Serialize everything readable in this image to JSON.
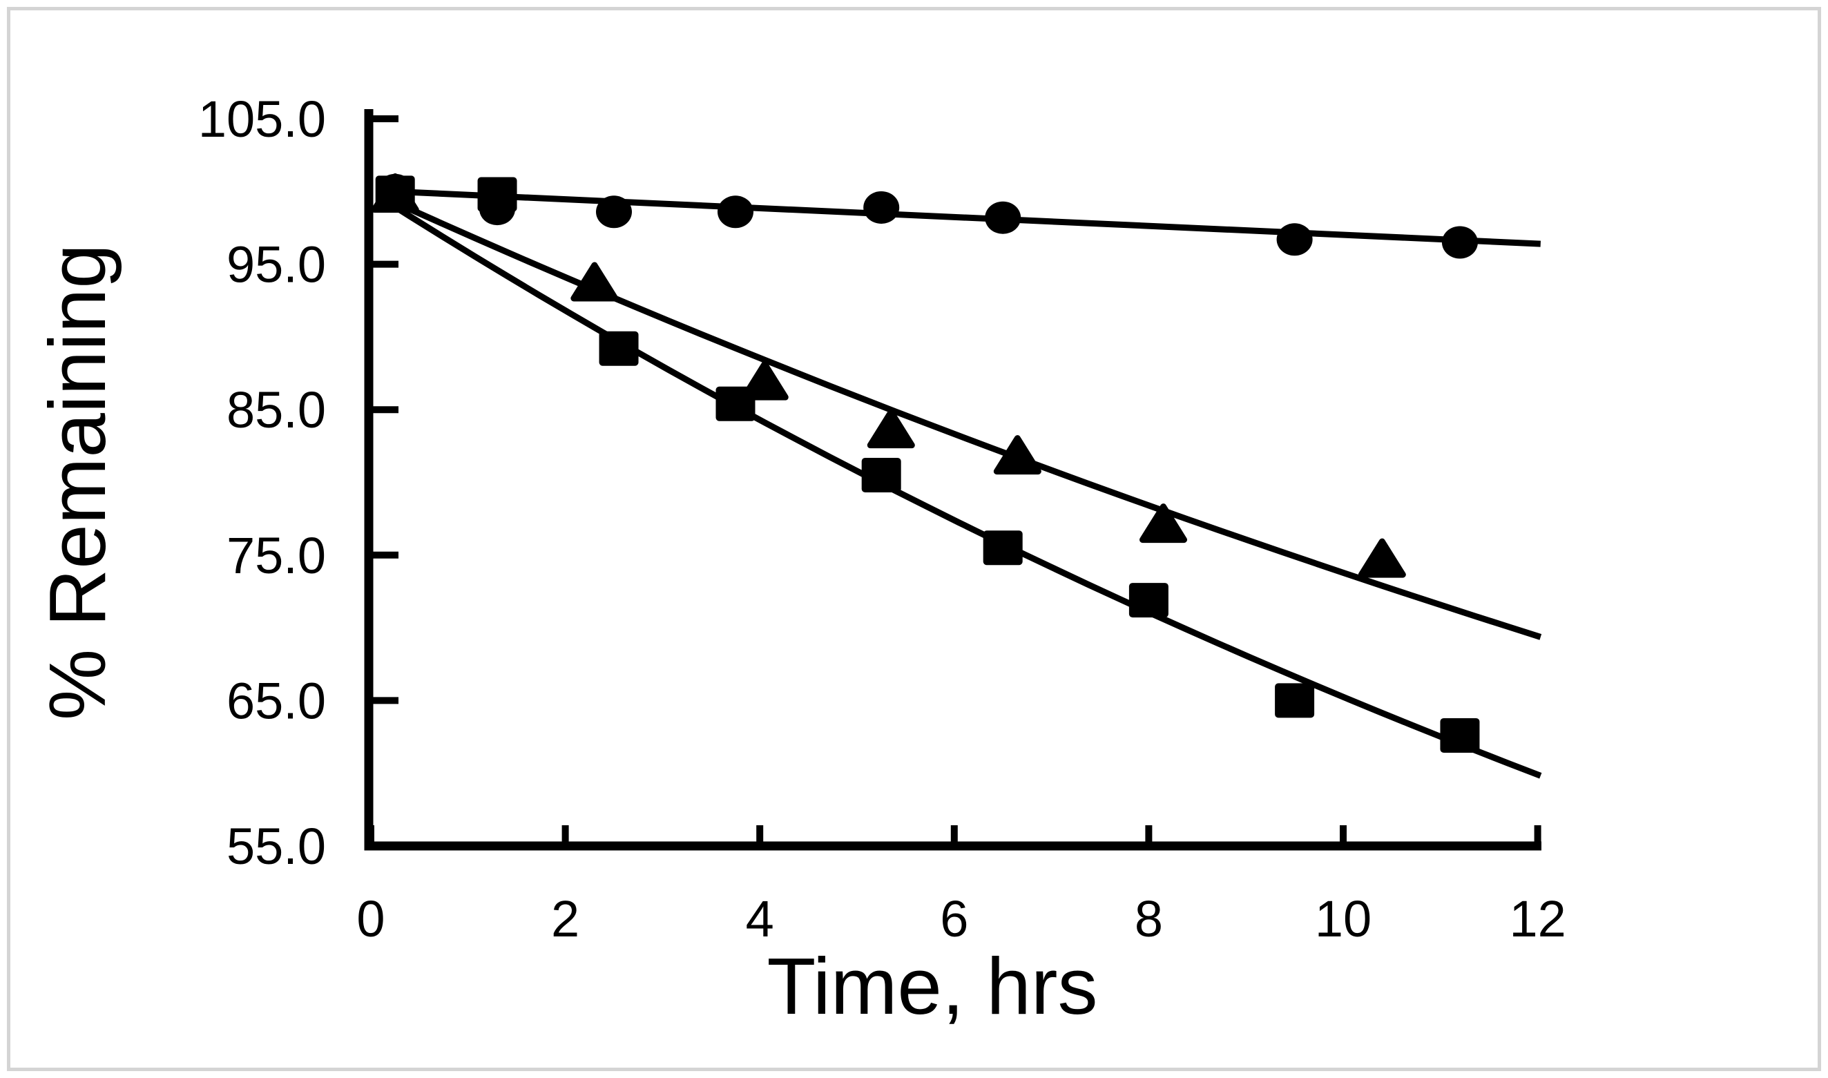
{
  "figure": {
    "background_color": "#ffffff",
    "frame_color": "#d4d4d4",
    "ink_color": "#000000"
  },
  "chart_data": {
    "type": "scatter",
    "title": "",
    "xlabel": "Time, hrs",
    "ylabel": "% Remaining",
    "xlim": [
      0,
      12
    ],
    "ylim": [
      55.0,
      105.0
    ],
    "grid": "off",
    "legend": "none",
    "x_axis": {
      "ticks": [
        {
          "value": 0,
          "label": "0"
        },
        {
          "value": 2,
          "label": "2"
        },
        {
          "value": 4,
          "label": "4"
        },
        {
          "value": 6,
          "label": "6"
        },
        {
          "value": 8,
          "label": "8"
        },
        {
          "value": 10,
          "label": "10"
        },
        {
          "value": 12,
          "label": "12"
        }
      ]
    },
    "y_axis": {
      "ticks": [
        {
          "value": 105,
          "label": "105.0"
        },
        {
          "value": 95,
          "label": "95.0"
        },
        {
          "value": 85,
          "label": "85.0"
        },
        {
          "value": 75,
          "label": "75.0"
        },
        {
          "value": 65,
          "label": "65.0"
        },
        {
          "value": 55,
          "label": "55.0"
        }
      ]
    },
    "series": [
      {
        "name": "circle-series",
        "marker": "circle",
        "color": "#000000",
        "points": [
          {
            "t": 0.25,
            "v": 100.1
          },
          {
            "t": 1.3,
            "v": 98.8
          },
          {
            "t": 2.5,
            "v": 98.6
          },
          {
            "t": 3.75,
            "v": 98.6
          },
          {
            "t": 5.25,
            "v": 98.9
          },
          {
            "t": 6.5,
            "v": 98.2
          },
          {
            "t": 9.5,
            "v": 96.7
          },
          {
            "t": 11.2,
            "v": 96.5
          }
        ],
        "trend": {
          "type": "linear",
          "t_start": 0.07,
          "t_end": 12.03,
          "v_start": 100.05,
          "v_end": 96.4
        }
      },
      {
        "name": "triangle-series",
        "marker": "triangle",
        "color": "#000000",
        "points": [
          {
            "t": 0.25,
            "v": 99.8
          },
          {
            "t": 2.3,
            "v": 93.7
          },
          {
            "t": 4.05,
            "v": 86.9
          },
          {
            "t": 5.35,
            "v": 83.6
          },
          {
            "t": 6.65,
            "v": 81.8
          },
          {
            "t": 8.15,
            "v": 77.1
          },
          {
            "t": 10.4,
            "v": 74.7
          }
        ],
        "trend": {
          "type": "exponential",
          "t_start": 0.07,
          "t_end": 12.03,
          "v0": 100.0,
          "k": 0.0304
        }
      },
      {
        "name": "square-series",
        "marker": "square",
        "color": "#000000",
        "points": [
          {
            "t": 0.25,
            "v": 99.9
          },
          {
            "t": 1.3,
            "v": 99.8
          },
          {
            "t": 2.55,
            "v": 89.2
          },
          {
            "t": 3.75,
            "v": 85.4
          },
          {
            "t": 5.25,
            "v": 80.5
          },
          {
            "t": 6.5,
            "v": 75.5
          },
          {
            "t": 8.0,
            "v": 71.9
          },
          {
            "t": 9.5,
            "v": 65.0
          },
          {
            "t": 11.2,
            "v": 62.6
          }
        ],
        "trend": {
          "type": "exponential",
          "t_start": 0.07,
          "t_end": 12.03,
          "v0": 100.0,
          "k": 0.0427
        }
      }
    ]
  }
}
